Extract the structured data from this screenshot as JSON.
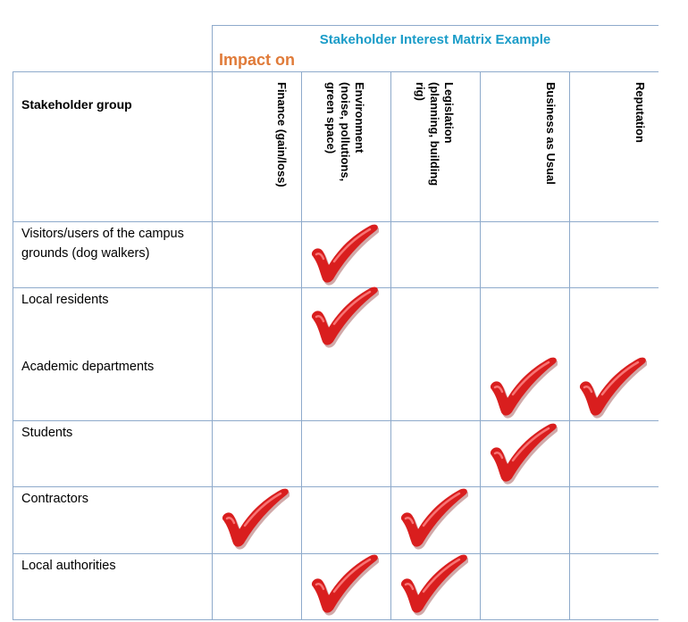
{
  "title": "Stakeholder Interest Matrix Example",
  "subtitle": "Impact on",
  "stakeholder_header": "Stakeholder group",
  "columns": [
    {
      "key": "finance",
      "label": "Finance (gain/loss)"
    },
    {
      "key": "environment",
      "label": "Environment\n(noise, pollutions,\ngreen space)"
    },
    {
      "key": "legislation",
      "label": "Legislation\n(planning, building\nrig)"
    },
    {
      "key": "business",
      "label": "Business as Usual"
    },
    {
      "key": "reputation",
      "label": "Reputation"
    }
  ],
  "rows": [
    {
      "label": "Visitors/users of the campus grounds (dog walkers)",
      "checks": [
        "environment"
      ]
    },
    {
      "label": "Local residents",
      "checks": [
        "environment"
      ]
    },
    {
      "label": "Academic departments",
      "checks": [
        "business",
        "reputation"
      ]
    },
    {
      "label": "Students",
      "checks": [
        "business"
      ]
    },
    {
      "label": "Contractors",
      "checks": [
        "finance",
        "legislation"
      ]
    },
    {
      "label": "Local authorities",
      "checks": [
        "environment",
        "legislation"
      ]
    }
  ],
  "colors": {
    "title": "#1a9cc8",
    "subtitle": "#e07b39",
    "grid": "#8eaacb",
    "check": "#d91e1e"
  },
  "icons": {
    "check": "checkmark-icon"
  }
}
